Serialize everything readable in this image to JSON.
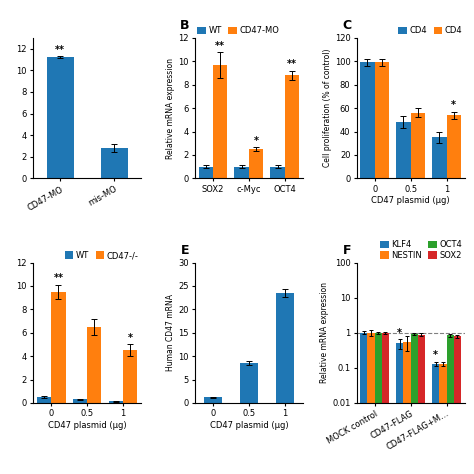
{
  "chart_data": [
    {
      "type": "bar",
      "categories": [
        "CD47-MO",
        "mis-MO"
      ],
      "values": [
        11.2,
        2.8
      ],
      "errors": [
        0.1,
        0.4
      ],
      "annotations": [
        "**",
        null
      ],
      "ylim": [
        0,
        13
      ],
      "yticks": [
        0,
        2,
        4,
        6,
        8,
        10,
        12
      ]
    },
    {
      "type": "bar",
      "title": "B",
      "categories": [
        "SOX2",
        "c-Myc",
        "OCT4"
      ],
      "ylabel": "Relative mRNA expression",
      "series": [
        {
          "name": "WT",
          "values": [
            1.0,
            1.0,
            1.0
          ],
          "errors": [
            0.15,
            0.1,
            0.1
          ]
        },
        {
          "name": "CD47-MO",
          "values": [
            9.7,
            2.5,
            8.8
          ],
          "errors": [
            1.1,
            0.15,
            0.4
          ],
          "annotations": [
            "**",
            "*",
            "**"
          ]
        }
      ],
      "legend": "upper left",
      "ylim": [
        0,
        12
      ],
      "yticks": [
        0,
        2,
        4,
        6,
        8,
        10,
        12
      ]
    },
    {
      "type": "bar",
      "title": "C",
      "categories": [
        "0",
        "0.5",
        "1"
      ],
      "xlabel": "CD47 plasmid (μg)",
      "ylabel": "Cell proliferation (% of control)",
      "series": [
        {
          "name": "CD4",
          "values": [
            99,
            48,
            35
          ],
          "errors": [
            3,
            5,
            5
          ]
        },
        {
          "name": "CD4",
          "values": [
            99,
            56,
            54
          ],
          "errors": [
            3,
            4,
            3
          ],
          "annotations": [
            null,
            null,
            "*"
          ]
        }
      ],
      "legend": "upper right",
      "ylim": [
        0,
        120
      ],
      "yticks": [
        0,
        20,
        40,
        60,
        80,
        100,
        120
      ]
    },
    {
      "type": "bar",
      "categories": [
        "0",
        "0.5",
        "1"
      ],
      "xlabel": "CD47 plasmid (μg)",
      "series": [
        {
          "name": "WT",
          "values": [
            0.5,
            0.3,
            0.15
          ],
          "errors": [
            0.05,
            0.05,
            0.05
          ]
        },
        {
          "name": "CD47-/-",
          "values": [
            9.5,
            6.5,
            4.5
          ],
          "errors": [
            0.6,
            0.7,
            0.5
          ],
          "annotations": [
            "**",
            null,
            "*"
          ]
        }
      ],
      "legend": "upper right",
      "ylim": [
        0,
        12
      ],
      "yticks": [
        0,
        2,
        4,
        6,
        8,
        10,
        12
      ]
    },
    {
      "type": "bar",
      "title": "E",
      "categories": [
        "0",
        "0.5",
        "1"
      ],
      "xlabel": "CD47 plasmid (μg)",
      "ylabel": "Human CD47 mRNA",
      "values": [
        1.2,
        8.5,
        23.5
      ],
      "errors": [
        0.1,
        0.5,
        0.8
      ],
      "ylim": [
        0,
        30
      ],
      "yticks": [
        0,
        5,
        10,
        15,
        20,
        25,
        30
      ]
    },
    {
      "type": "bar",
      "title": "F",
      "categories": [
        "MOCK control",
        "CD47-FLAG",
        "CD47-FLAG+M…"
      ],
      "ylabel": "Relative mRNA expression",
      "series": [
        {
          "name": "KLF4",
          "values": [
            1.0,
            0.5,
            0.13
          ],
          "errors": [
            0.1,
            0.15,
            0.02
          ],
          "annotations": [
            null,
            "*",
            "*"
          ]
        },
        {
          "name": "NESTIN",
          "values": [
            1.0,
            0.55,
            0.13
          ],
          "errors": [
            0.2,
            0.25,
            0.02
          ]
        },
        {
          "name": "OCT4",
          "values": [
            1.0,
            0.92,
            0.85
          ],
          "errors": [
            0.08,
            0.08,
            0.08
          ]
        },
        {
          "name": "SOX2",
          "values": [
            1.0,
            0.88,
            0.8
          ],
          "errors": [
            0.08,
            0.08,
            0.08
          ]
        }
      ],
      "log": "y",
      "reference_line": 1,
      "legend": "upper right",
      "ylim": [
        0.01,
        100
      ],
      "yticks": [
        0.01,
        0.1,
        1,
        10,
        100
      ]
    }
  ]
}
